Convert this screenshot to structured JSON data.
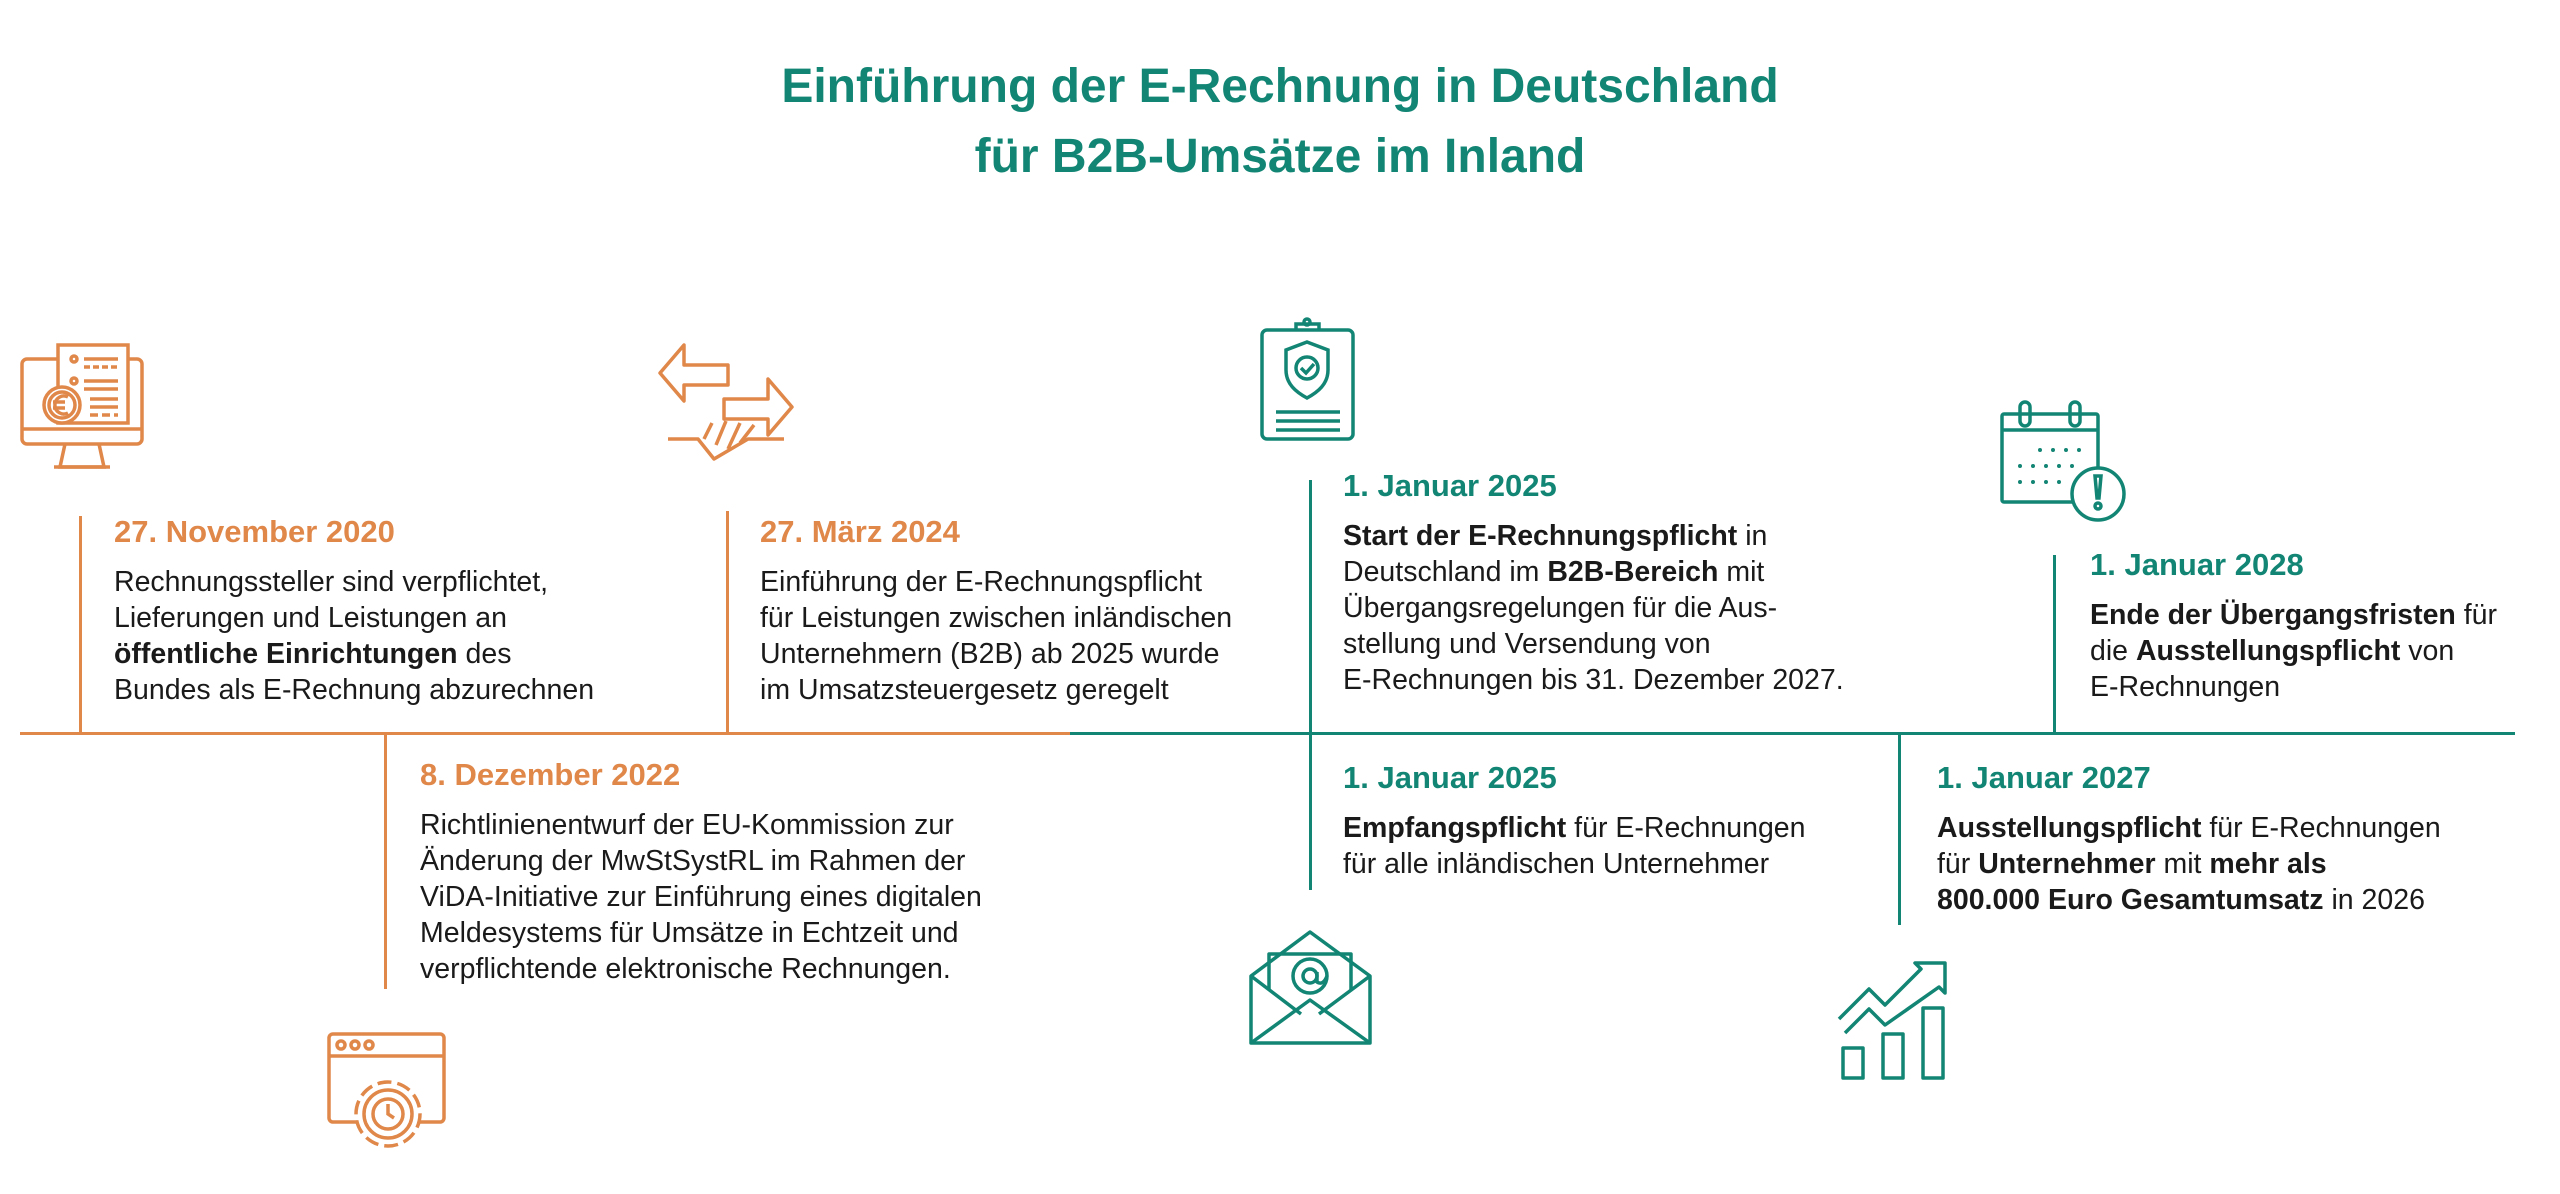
{
  "title": {
    "line1": "Einführung der E-Rechnung in Deutschland",
    "line2": "für B2B-Umsätze im Inland"
  },
  "colors": {
    "orange": "#E0874A",
    "teal": "#128574"
  },
  "events": [
    {
      "id": "nov-2020",
      "date": "27. November 2020",
      "color": "orange",
      "icon": "monitor-invoice-euro-icon",
      "lines": [
        [
          {
            "t": "Rechnungssteller sind verpflichtet,"
          }
        ],
        [
          {
            "t": "Lieferungen und Leistungen an"
          }
        ],
        [
          {
            "t": "öffentliche Einrichtungen",
            "b": true
          },
          {
            "t": " des"
          }
        ],
        [
          {
            "t": "Bundes als E-Rechnung abzurechnen"
          }
        ]
      ]
    },
    {
      "id": "dez-2022",
      "date": "8. Dezember 2022",
      "color": "orange",
      "icon": "browser-gear-icon",
      "lines": [
        [
          {
            "t": "Richtlinienentwurf der EU-Kommission zur"
          }
        ],
        [
          {
            "t": "Änderung der MwStSystRL im Rahmen der"
          }
        ],
        [
          {
            "t": "ViDA-Initiative zur Einführung eines digitalen"
          }
        ],
        [
          {
            "t": "Meldesystems für Umsätze in Echtzeit und"
          }
        ],
        [
          {
            "t": "verpflichtende elektronische Rechnungen."
          }
        ]
      ]
    },
    {
      "id": "maerz-2024",
      "date": "27. März 2024",
      "color": "orange",
      "icon": "handshake-arrows-icon",
      "lines": [
        [
          {
            "t": "Einführung der E-Rechnungspflicht"
          }
        ],
        [
          {
            "t": "für Leistungen zwischen inländischen"
          }
        ],
        [
          {
            "t": "Unternehmern (B2B) ab 2025 wurde"
          }
        ],
        [
          {
            "t": "im Umsatzsteuergesetz geregelt"
          }
        ]
      ]
    },
    {
      "id": "jan-2025-start",
      "date": "1. Januar 2025",
      "color": "teal",
      "icon": "clipboard-shield-icon",
      "lines": [
        [
          {
            "t": "Start der E-Rechnungspflicht",
            "b": true
          },
          {
            "t": " in"
          }
        ],
        [
          {
            "t": "Deutschland im "
          },
          {
            "t": "B2B-Bereich",
            "b": true
          },
          {
            "t": " mit"
          }
        ],
        [
          {
            "t": "Übergangsregelungen für die Aus-"
          }
        ],
        [
          {
            "t": "stellung und Versendung von"
          }
        ],
        [
          {
            "t": "E-Rechnungen bis 31. Dezember 2027."
          }
        ]
      ]
    },
    {
      "id": "jan-2025-empfang",
      "date": "1. Januar 2025",
      "color": "teal",
      "icon": "envelope-at-icon",
      "lines": [
        [
          {
            "t": "Empfangspflicht",
            "b": true
          },
          {
            "t": " für E-Rechnungen"
          }
        ],
        [
          {
            "t": "für alle inländischen Unternehmer"
          }
        ]
      ]
    },
    {
      "id": "jan-2027",
      "date": "1. Januar 2027",
      "color": "teal",
      "icon": "growth-chart-icon",
      "lines": [
        [
          {
            "t": "Ausstellungspflicht",
            "b": true
          },
          {
            "t": " für E-Rechnungen"
          }
        ],
        [
          {
            "t": "für "
          },
          {
            "t": "Unternehmer",
            "b": true
          },
          {
            "t": " mit "
          },
          {
            "t": "mehr als",
            "b": true
          }
        ],
        [
          {
            "t": "800.000 Euro Gesamtumsatz",
            "b": true
          },
          {
            "t": " in 2026"
          }
        ]
      ]
    },
    {
      "id": "jan-2028",
      "date": "1. Januar 2028",
      "color": "teal",
      "icon": "calendar-alert-icon",
      "lines": [
        [
          {
            "t": "Ende der Übergangsfristen",
            "b": true
          },
          {
            "t": " für"
          }
        ],
        [
          {
            "t": "die "
          },
          {
            "t": "Ausstellungspflicht",
            "b": true
          },
          {
            "t": " von"
          }
        ],
        [
          {
            "t": "E-Rechnungen"
          }
        ]
      ]
    }
  ]
}
